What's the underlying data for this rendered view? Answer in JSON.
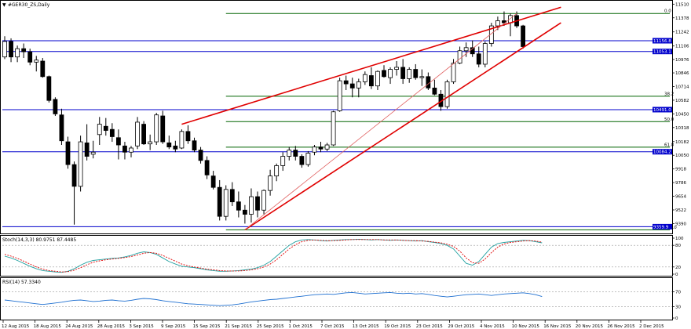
{
  "chart_data": [
    {
      "type": "candlestick",
      "title": "#GER30_ZS,Daily",
      "ylim": [
        9310,
        11520
      ],
      "y_ticks": [
        "11510",
        "11378",
        "11242",
        "11106",
        "10976",
        "10846",
        "10714",
        "10582",
        "10450",
        "10318",
        "10182",
        "10050",
        "9918",
        "9786",
        "9654",
        "9522",
        "9390"
      ],
      "x_ticks": [
        "12 Aug 2015",
        "18 Aug 2015",
        "24 Aug 2015",
        "28 Aug 2015",
        "3 Sep 2015",
        "9 Sep 2015",
        "15 Sep 2015",
        "21 Sep 2015",
        "25 Sep 2015",
        "1 Oct 2015",
        "7 Oct 2015",
        "13 Oct 2015",
        "19 Oct 2015",
        "23 Oct 2015",
        "29 Oct 2015",
        "4 Nov 2015",
        "10 Nov 2015",
        "16 Nov 2015",
        "20 Nov 2015",
        "26 Nov 2015",
        "2 Dec 2015"
      ],
      "candles": [
        {
          "o": 11000,
          "h": 11200,
          "l": 10980,
          "c": 11150
        },
        {
          "o": 11150,
          "h": 11180,
          "l": 10950,
          "c": 11000
        },
        {
          "o": 11000,
          "h": 11110,
          "l": 10950,
          "c": 11080
        },
        {
          "o": 11080,
          "h": 11130,
          "l": 10990,
          "c": 11050
        },
        {
          "o": 11050,
          "h": 11080,
          "l": 10920,
          "c": 10950
        },
        {
          "o": 10950,
          "h": 11010,
          "l": 10860,
          "c": 10970
        },
        {
          "o": 10960,
          "h": 10990,
          "l": 10800,
          "c": 10810
        },
        {
          "o": 10810,
          "h": 10820,
          "l": 10560,
          "c": 10580
        },
        {
          "o": 10590,
          "h": 10610,
          "l": 10430,
          "c": 10450
        },
        {
          "o": 10440,
          "h": 10500,
          "l": 10150,
          "c": 10190
        },
        {
          "o": 10180,
          "h": 10230,
          "l": 9920,
          "c": 9960
        },
        {
          "o": 9960,
          "h": 9990,
          "l": 9380,
          "c": 9750
        },
        {
          "o": 9750,
          "h": 10240,
          "l": 9700,
          "c": 10180
        },
        {
          "o": 10170,
          "h": 10350,
          "l": 10000,
          "c": 10040
        },
        {
          "o": 10060,
          "h": 10190,
          "l": 10020,
          "c": 10080
        },
        {
          "o": 10250,
          "h": 10420,
          "l": 10150,
          "c": 10350
        },
        {
          "o": 10330,
          "h": 10410,
          "l": 10240,
          "c": 10290
        },
        {
          "o": 10300,
          "h": 10360,
          "l": 10180,
          "c": 10230
        },
        {
          "o": 10220,
          "h": 10300,
          "l": 10010,
          "c": 10150
        },
        {
          "o": 10140,
          "h": 10180,
          "l": 10010,
          "c": 10080
        },
        {
          "o": 10080,
          "h": 10140,
          "l": 10030,
          "c": 10120
        },
        {
          "o": 10140,
          "h": 10420,
          "l": 10110,
          "c": 10370
        },
        {
          "o": 10350,
          "h": 10380,
          "l": 10150,
          "c": 10160
        },
        {
          "o": 10160,
          "h": 10250,
          "l": 10100,
          "c": 10180
        },
        {
          "o": 10180,
          "h": 10460,
          "l": 10150,
          "c": 10440
        },
        {
          "o": 10430,
          "h": 10480,
          "l": 10160,
          "c": 10180
        },
        {
          "o": 10170,
          "h": 10240,
          "l": 10110,
          "c": 10130
        },
        {
          "o": 10140,
          "h": 10190,
          "l": 10080,
          "c": 10110
        },
        {
          "o": 10120,
          "h": 10300,
          "l": 10110,
          "c": 10280
        },
        {
          "o": 10280,
          "h": 10340,
          "l": 10160,
          "c": 10190
        },
        {
          "o": 10190,
          "h": 10220,
          "l": 10080,
          "c": 10100
        },
        {
          "o": 10100,
          "h": 10130,
          "l": 9970,
          "c": 10000
        },
        {
          "o": 10000,
          "h": 10040,
          "l": 9820,
          "c": 9860
        },
        {
          "o": 9850,
          "h": 9900,
          "l": 9720,
          "c": 9740
        },
        {
          "o": 9740,
          "h": 9810,
          "l": 9420,
          "c": 9460
        },
        {
          "o": 9460,
          "h": 9760,
          "l": 9420,
          "c": 9720
        },
        {
          "o": 9720,
          "h": 9790,
          "l": 9560,
          "c": 9600
        },
        {
          "o": 9600,
          "h": 9700,
          "l": 9450,
          "c": 9520
        },
        {
          "o": 9520,
          "h": 9570,
          "l": 9390,
          "c": 9480
        },
        {
          "o": 9480,
          "h": 9730,
          "l": 9400,
          "c": 9650
        },
        {
          "o": 9650,
          "h": 9700,
          "l": 9450,
          "c": 9520
        },
        {
          "o": 9520,
          "h": 9720,
          "l": 9480,
          "c": 9710
        },
        {
          "o": 9710,
          "h": 9910,
          "l": 9660,
          "c": 9850
        },
        {
          "o": 9850,
          "h": 9970,
          "l": 9800,
          "c": 9950
        },
        {
          "o": 9950,
          "h": 10080,
          "l": 9900,
          "c": 10040
        },
        {
          "o": 10040,
          "h": 10130,
          "l": 10000,
          "c": 10100
        },
        {
          "o": 10100,
          "h": 10140,
          "l": 10000,
          "c": 10040
        },
        {
          "o": 10040,
          "h": 10060,
          "l": 9930,
          "c": 9960
        },
        {
          "o": 9960,
          "h": 10090,
          "l": 9940,
          "c": 10070
        },
        {
          "o": 10080,
          "h": 10150,
          "l": 10050,
          "c": 10130
        },
        {
          "o": 10130,
          "h": 10180,
          "l": 10080,
          "c": 10110
        },
        {
          "o": 10110,
          "h": 10170,
          "l": 10090,
          "c": 10150
        },
        {
          "o": 10150,
          "h": 10480,
          "l": 10140,
          "c": 10470
        },
        {
          "o": 10480,
          "h": 10800,
          "l": 10470,
          "c": 10770
        },
        {
          "o": 10770,
          "h": 10820,
          "l": 10680,
          "c": 10740
        },
        {
          "o": 10740,
          "h": 10800,
          "l": 10610,
          "c": 10700
        },
        {
          "o": 10700,
          "h": 10790,
          "l": 10610,
          "c": 10760
        },
        {
          "o": 10760,
          "h": 10860,
          "l": 10730,
          "c": 10830
        },
        {
          "o": 10820,
          "h": 10900,
          "l": 10690,
          "c": 10720
        },
        {
          "o": 10720,
          "h": 10870,
          "l": 10680,
          "c": 10860
        },
        {
          "o": 10870,
          "h": 10920,
          "l": 10800,
          "c": 10810
        },
        {
          "o": 10800,
          "h": 10900,
          "l": 10740,
          "c": 10880
        },
        {
          "o": 10880,
          "h": 10960,
          "l": 10820,
          "c": 10900
        },
        {
          "o": 10900,
          "h": 10980,
          "l": 10740,
          "c": 10790
        },
        {
          "o": 10790,
          "h": 10900,
          "l": 10750,
          "c": 10880
        },
        {
          "o": 10880,
          "h": 10930,
          "l": 10780,
          "c": 10800
        },
        {
          "o": 10800,
          "h": 10880,
          "l": 10720,
          "c": 10810
        },
        {
          "o": 10810,
          "h": 10850,
          "l": 10680,
          "c": 10700
        },
        {
          "o": 10700,
          "h": 10780,
          "l": 10630,
          "c": 10640
        },
        {
          "o": 10640,
          "h": 10680,
          "l": 10480,
          "c": 10520
        },
        {
          "o": 10520,
          "h": 10780,
          "l": 10500,
          "c": 10760
        },
        {
          "o": 10760,
          "h": 10980,
          "l": 10740,
          "c": 10940
        },
        {
          "o": 10940,
          "h": 11100,
          "l": 10930,
          "c": 11060
        },
        {
          "o": 11060,
          "h": 11140,
          "l": 11000,
          "c": 11090
        },
        {
          "o": 11090,
          "h": 11160,
          "l": 11000,
          "c": 11030
        },
        {
          "o": 11030,
          "h": 11100,
          "l": 10900,
          "c": 10930
        },
        {
          "o": 10930,
          "h": 11150,
          "l": 10900,
          "c": 11130
        },
        {
          "o": 11130,
          "h": 11330,
          "l": 11100,
          "c": 11300
        },
        {
          "o": 11300,
          "h": 11390,
          "l": 11260,
          "c": 11350
        },
        {
          "o": 11350,
          "h": 11440,
          "l": 11300,
          "c": 11330
        },
        {
          "o": 11330,
          "h": 11420,
          "l": 11200,
          "c": 11400
        },
        {
          "o": 11400,
          "h": 11440,
          "l": 11280,
          "c": 11300
        },
        {
          "o": 11300,
          "h": 11310,
          "l": 11080,
          "c": 11100
        }
      ],
      "horizontal_levels": [
        {
          "value": 11156.8,
          "label": "11156.8",
          "color": "#0000cc"
        },
        {
          "value": 11053.1,
          "label": "11053.1",
          "color": "#0000cc"
        },
        {
          "value": 10491.0,
          "label": "10491.0",
          "color": "#0000cc"
        },
        {
          "value": 10084.2,
          "label": "10084.2",
          "color": "#0000cc"
        },
        {
          "value": 9359.9,
          "label": "9359.9",
          "color": "#0000cc"
        }
      ],
      "fibonacci": {
        "start_price": 9330,
        "end_price": 11420,
        "levels": [
          {
            "ratio": 0,
            "label": "0.0",
            "value": 11420
          },
          {
            "ratio": 0.382,
            "label": "38.2",
            "value": 10620
          },
          {
            "ratio": 0.5,
            "label": "50.0",
            "value": 10375
          },
          {
            "ratio": 0.618,
            "label": "61.8",
            "value": 10128
          },
          {
            "ratio": 1,
            "label": "100.0",
            "value": 9330
          }
        ],
        "color": "#006400"
      },
      "trendlines": [
        {
          "from": {
            "index": 28,
            "value": 10350
          },
          "to": {
            "index": 88,
            "value": 11480
          },
          "color": "#e00000"
        },
        {
          "from": {
            "index": 38,
            "value": 9330
          },
          "to": {
            "index": 88,
            "value": 11330
          },
          "color": "#e00000"
        },
        {
          "from": {
            "index": 38,
            "value": 9330
          },
          "to": {
            "index": 81,
            "value": 11420
          },
          "color": "#e06060"
        }
      ],
      "colors": {
        "bull": "#ffffff",
        "bear": "#000000",
        "outline": "#000000"
      }
    },
    {
      "type": "line",
      "title": "Stoch(14,3,3) 80.9751 87.4485",
      "ylim": [
        0,
        100
      ],
      "y_ticks": [
        "100",
        "80",
        "20",
        "0"
      ],
      "series": [
        {
          "color": "#20a0a0",
          "values": [
            50,
            45,
            38,
            30,
            22,
            15,
            10,
            8,
            6,
            5,
            8,
            15,
            25,
            33,
            38,
            40,
            42,
            44,
            45,
            48,
            52,
            58,
            62,
            60,
            55,
            45,
            35,
            28,
            22,
            20,
            18,
            15,
            12,
            10,
            8,
            8,
            9,
            10,
            12,
            14,
            18,
            25,
            35,
            50,
            65,
            80,
            90,
            95,
            96,
            95,
            93,
            92,
            94,
            95,
            96,
            96,
            97,
            96,
            95,
            96,
            95,
            94,
            95,
            94,
            93,
            92,
            93,
            90,
            88,
            85,
            80,
            70,
            50,
            30,
            25,
            35,
            55,
            75,
            85,
            88,
            90,
            92,
            94,
            93,
            90,
            87
          ]
        },
        {
          "color": "#e00000",
          "values": [
            55,
            50,
            44,
            36,
            28,
            20,
            14,
            10,
            8,
            6,
            7,
            11,
            18,
            26,
            33,
            37,
            40,
            42,
            44,
            46,
            49,
            53,
            58,
            60,
            58,
            52,
            44,
            36,
            28,
            23,
            20,
            17,
            14,
            12,
            10,
            9,
            9,
            9,
            10,
            12,
            15,
            20,
            28,
            40,
            55,
            70,
            82,
            90,
            94,
            95,
            94,
            93,
            93,
            94,
            95,
            96,
            96,
            96,
            96,
            96,
            95,
            95,
            95,
            94,
            93,
            93,
            92,
            91,
            89,
            87,
            83,
            77,
            64,
            45,
            32,
            30,
            42,
            60,
            75,
            84,
            88,
            90,
            92,
            93,
            92,
            89
          ]
        }
      ]
    },
    {
      "type": "line",
      "title": "RSI(14) 57.3340",
      "ylim": [
        0,
        100
      ],
      "y_ticks": [
        "70",
        "30",
        "0"
      ],
      "series": [
        {
          "color": "#1e6fd0",
          "values": [
            48,
            46,
            44,
            42,
            40,
            38,
            36,
            38,
            40,
            42,
            45,
            47,
            48,
            46,
            44,
            45,
            47,
            48,
            46,
            45,
            47,
            50,
            52,
            51,
            49,
            46,
            44,
            42,
            40,
            38,
            37,
            36,
            35,
            34,
            33,
            34,
            35,
            37,
            40,
            43,
            45,
            47,
            49,
            50,
            52,
            54,
            56,
            58,
            60,
            62,
            63,
            64,
            63,
            65,
            67,
            68,
            66,
            64,
            65,
            66,
            67,
            68,
            66,
            65,
            66,
            64,
            65,
            63,
            60,
            58,
            56,
            58,
            60,
            62,
            63,
            64,
            62,
            60,
            62,
            64,
            65,
            66,
            67,
            65,
            62,
            57
          ]
        }
      ]
    }
  ],
  "price_axis_labels": {
    "fib0": "0.0",
    "fib382": "38.2",
    "fib50": "50.0",
    "fib618": "61.8",
    "fib100": "100.0"
  }
}
